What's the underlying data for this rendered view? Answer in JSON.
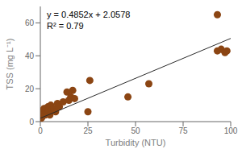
{
  "chart_data": {
    "type": "scatter",
    "xlabel": "Turbidity (NTU)",
    "ylabel": "TSS (mg L⁻¹)",
    "annotations": [
      "y = 0.4852x + 2.0578",
      "R² = 0.79"
    ],
    "series": [
      {
        "type": "scatter",
        "color": "#8B4513",
        "x": [
          0.5,
          1,
          1,
          1.5,
          2,
          2,
          2.5,
          3,
          3,
          3.5,
          4,
          4,
          4.5,
          5,
          5,
          5.5,
          6,
          7,
          8,
          9,
          10,
          12,
          14,
          15,
          16,
          17,
          18,
          25,
          26,
          46,
          57,
          93,
          93,
          95,
          97,
          98
        ],
        "values": [
          2,
          3,
          5,
          7,
          5,
          8,
          4,
          6,
          8,
          5,
          6,
          9,
          7,
          4,
          9,
          10,
          7,
          8,
          6,
          11,
          9,
          12,
          18,
          13,
          15,
          19,
          14,
          6,
          25,
          15,
          23,
          65,
          43,
          44,
          42,
          43
        ]
      },
      {
        "type": "line",
        "color": "#2a2a2a",
        "x": [
          0,
          100
        ],
        "values": [
          2.0578,
          50.5778
        ]
      }
    ],
    "xlim": [
      0,
      100
    ],
    "ylim": [
      0,
      70
    ],
    "xticks": [
      0,
      25,
      50,
      75,
      100
    ],
    "yticks": [
      0,
      20,
      40,
      60
    ],
    "grid": false
  }
}
